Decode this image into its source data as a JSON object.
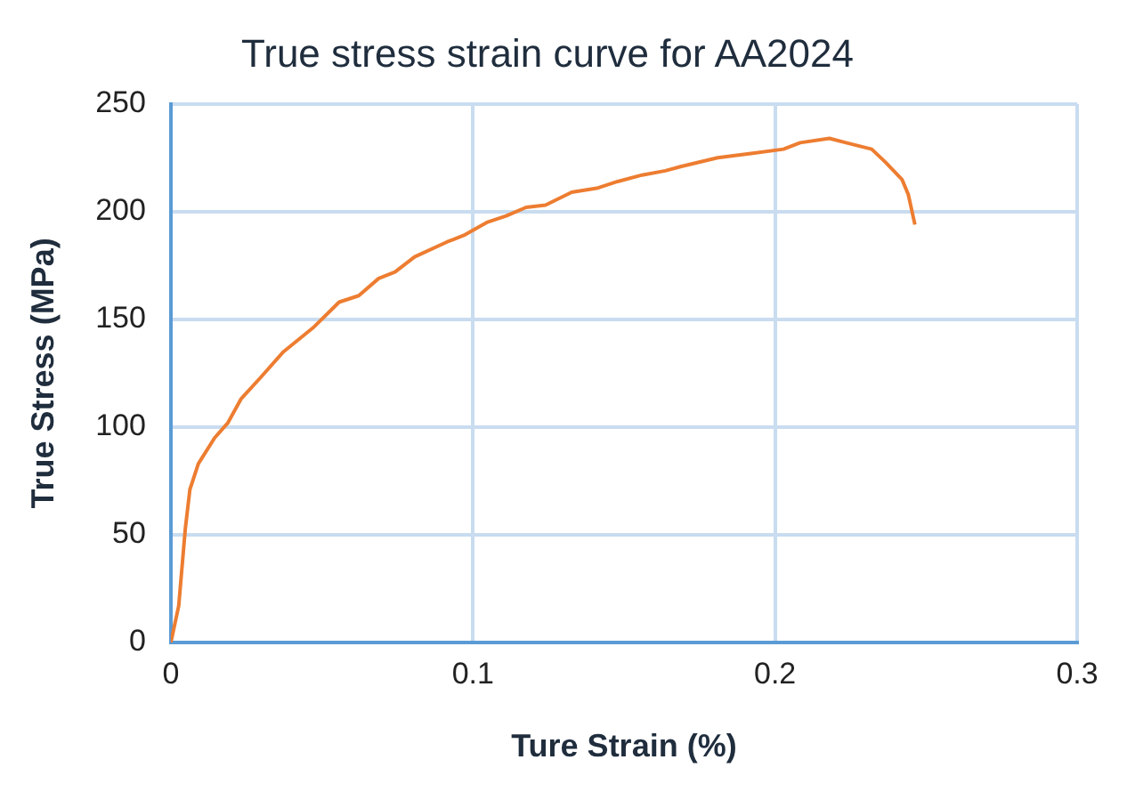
{
  "chart_data": {
    "type": "line",
    "title": "True stress strain curve for AA2024",
    "xlabel": "Ture Strain (%)",
    "ylabel": "True Stress (MPa)",
    "xlim": [
      0,
      0.3
    ],
    "xticks": [
      0,
      0.1,
      0.2,
      0.3
    ],
    "ylim": [
      0,
      250
    ],
    "yticks": [
      0,
      50,
      100,
      150,
      200,
      250
    ],
    "grid": true,
    "legend": false,
    "marker": "none",
    "series": [
      {
        "color": "#ed7d31",
        "x": [
          0,
          0.0026,
          0.0048,
          0.0063,
          0.0091,
          0.0145,
          0.0189,
          0.0232,
          0.0297,
          0.0373,
          0.047,
          0.0557,
          0.0622,
          0.0688,
          0.0742,
          0.0807,
          0.0915,
          0.097,
          0.1046,
          0.111,
          0.1176,
          0.124,
          0.1327,
          0.1414,
          0.1479,
          0.156,
          0.1637,
          0.169,
          0.181,
          0.192,
          0.2028,
          0.2083,
          0.218,
          0.2235,
          0.232,
          0.2365,
          0.242,
          0.2441,
          0.2463
        ],
        "values": [
          0,
          17,
          53,
          71,
          83,
          95,
          102,
          113,
          123,
          135,
          146,
          158,
          161,
          169,
          172,
          179,
          186,
          189,
          195,
          198,
          202,
          203,
          209,
          211,
          214,
          217,
          219,
          221,
          225,
          227,
          229,
          232,
          234,
          232,
          229,
          223,
          215,
          208,
          194
        ]
      }
    ]
  }
}
